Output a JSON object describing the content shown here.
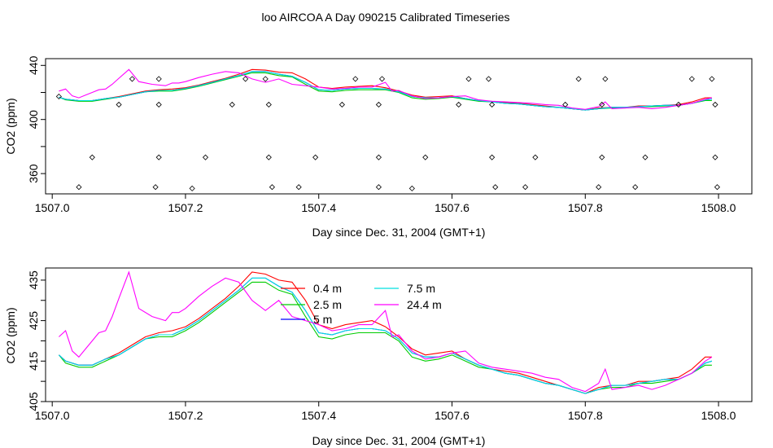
{
  "figure_title": "loo AIRCOA A  Day 090215  Calibrated Timeseries",
  "colors": {
    "0.4 m": "#ff0000",
    "2.5 m": "#00cc00",
    "5 m": "#0000ff",
    "7.5 m": "#00e0e0",
    "24.4 m": "#ff00ff"
  },
  "chart_data": [
    {
      "type": "line",
      "panel": "top",
      "xlabel": "Day since Dec. 31, 2004 (GMT+1)",
      "ylabel": "CO2 (ppm)",
      "xlim": [
        1506.99,
        1508.05
      ],
      "ylim": [
        345,
        445
      ],
      "xticks": [
        1507.0,
        1507.2,
        1507.4,
        1507.6,
        1507.8,
        1508.0
      ],
      "xtick_labels": [
        "1507.0",
        "1507.2",
        "1507.4",
        "1507.6",
        "1507.8",
        "1508.0"
      ],
      "yticks": [
        360,
        380,
        400,
        420,
        440
      ],
      "ytick_labels": [
        "360",
        "",
        "400",
        "",
        "440"
      ],
      "grid": false,
      "legend": "none",
      "series": [
        {
          "name": "0.4 m",
          "x": [
            1507.01,
            1507.02,
            1507.04,
            1507.06,
            1507.08,
            1507.1,
            1507.12,
            1507.14,
            1507.16,
            1507.18,
            1507.2,
            1507.22,
            1507.24,
            1507.26,
            1507.28,
            1507.3,
            1507.32,
            1507.34,
            1507.36,
            1507.38,
            1507.4,
            1507.42,
            1507.44,
            1507.46,
            1507.48,
            1507.5,
            1507.52,
            1507.54,
            1507.56,
            1507.58,
            1507.6,
            1507.62,
            1507.64,
            1507.66,
            1507.68,
            1507.7,
            1507.72,
            1507.74,
            1507.76,
            1507.78,
            1507.8,
            1507.82,
            1507.84,
            1507.86,
            1507.88,
            1507.9,
            1507.92,
            1507.94,
            1507.96,
            1507.98,
            1507.99
          ],
          "y": [
            416.5,
            415,
            414,
            414,
            415.5,
            417,
            419,
            421,
            422,
            422.5,
            423.5,
            425.5,
            428,
            430.5,
            433.5,
            437,
            436.5,
            435,
            434.5,
            430,
            424,
            423,
            424,
            424.5,
            425,
            423.5,
            421,
            418,
            416.5,
            417,
            417.5,
            415.5,
            414,
            413,
            412.5,
            412,
            411,
            410,
            409,
            408,
            407,
            408.5,
            409,
            409,
            410,
            410,
            410.5,
            411,
            413,
            416,
            416
          ]
        },
        {
          "name": "2.5 m",
          "x": [
            1507.01,
            1507.02,
            1507.04,
            1507.06,
            1507.08,
            1507.1,
            1507.12,
            1507.14,
            1507.16,
            1507.18,
            1507.2,
            1507.22,
            1507.24,
            1507.26,
            1507.28,
            1507.3,
            1507.32,
            1507.34,
            1507.36,
            1507.38,
            1507.4,
            1507.42,
            1507.44,
            1507.46,
            1507.48,
            1507.5,
            1507.52,
            1507.54,
            1507.56,
            1507.58,
            1507.6,
            1507.62,
            1507.64,
            1507.66,
            1507.68,
            1507.7,
            1507.72,
            1507.74,
            1507.76,
            1507.78,
            1507.8,
            1507.82,
            1507.84,
            1507.86,
            1507.88,
            1507.9,
            1507.92,
            1507.94,
            1507.96,
            1507.98,
            1507.99
          ],
          "y": [
            416.5,
            414.5,
            413.5,
            413.5,
            415,
            416.5,
            418.5,
            420.5,
            421,
            421,
            422.5,
            424.5,
            427,
            429.5,
            432,
            434.5,
            434.5,
            432.5,
            431.5,
            426,
            421,
            420.5,
            421.5,
            422,
            422,
            422,
            420,
            416,
            415,
            415.5,
            416.5,
            415,
            413.5,
            413,
            412,
            411.5,
            410.5,
            409.5,
            409,
            408,
            407,
            408,
            408.5,
            408.5,
            409.5,
            409.5,
            410,
            410.5,
            412,
            414,
            414
          ]
        },
        {
          "name": "5 m",
          "x": [
            1507.01,
            1507.02,
            1507.04,
            1507.06,
            1507.08,
            1507.1,
            1507.12,
            1507.14,
            1507.16,
            1507.18,
            1507.2,
            1507.22,
            1507.24,
            1507.26,
            1507.28,
            1507.3,
            1507.32,
            1507.34,
            1507.36,
            1507.38,
            1507.4,
            1507.42,
            1507.44,
            1507.46,
            1507.48,
            1507.5,
            1507.52,
            1507.54,
            1507.56,
            1507.58,
            1507.6,
            1507.62,
            1507.64,
            1507.66,
            1507.68,
            1507.7,
            1507.72,
            1507.74,
            1507.76,
            1507.78,
            1507.8,
            1507.82,
            1507.84,
            1507.86,
            1507.88,
            1507.9,
            1507.92,
            1507.94,
            1507.96,
            1507.98,
            1507.99
          ],
          "y": [
            416.5,
            415,
            414,
            414,
            415.5,
            416.5,
            418.5,
            420.5,
            421.5,
            421.5,
            423,
            425,
            427.5,
            430,
            432.5,
            435.5,
            435.5,
            433.5,
            432,
            427.5,
            422,
            421.5,
            422.5,
            423,
            423,
            422.5,
            420.5,
            417,
            416,
            416,
            417,
            415.5,
            414,
            413,
            412,
            411.5,
            410.5,
            409.5,
            409,
            408,
            407,
            408,
            409,
            409,
            409.5,
            410,
            410.5,
            410.5,
            412,
            414.5,
            415
          ]
        },
        {
          "name": "7.5 m",
          "x": [
            1507.01,
            1507.02,
            1507.04,
            1507.06,
            1507.08,
            1507.1,
            1507.12,
            1507.14,
            1507.16,
            1507.18,
            1507.2,
            1507.22,
            1507.24,
            1507.26,
            1507.28,
            1507.3,
            1507.32,
            1507.34,
            1507.36,
            1507.38,
            1507.4,
            1507.42,
            1507.44,
            1507.46,
            1507.48,
            1507.5,
            1507.52,
            1507.54,
            1507.56,
            1507.58,
            1507.6,
            1507.62,
            1507.64,
            1507.66,
            1507.68,
            1507.7,
            1507.72,
            1507.74,
            1507.76,
            1507.78,
            1507.8,
            1507.82,
            1507.84,
            1507.86,
            1507.88,
            1507.9,
            1507.92,
            1507.94,
            1507.96,
            1507.98,
            1507.99
          ],
          "y": [
            416.5,
            415,
            414,
            414,
            415.5,
            416.5,
            418.5,
            420.5,
            421.5,
            421.5,
            423,
            425,
            427.5,
            430,
            432.5,
            435.5,
            435.5,
            433.5,
            432,
            427.5,
            422,
            421.5,
            422.5,
            423,
            423,
            422.5,
            420.5,
            417,
            416,
            416,
            417,
            415.5,
            414,
            413,
            412,
            411.5,
            410.5,
            409.5,
            409,
            408,
            407,
            408,
            409,
            409,
            409.5,
            410,
            410.5,
            410.5,
            412,
            414.5,
            415
          ]
        },
        {
          "name": "24.4 m",
          "x": [
            1507.01,
            1507.02,
            1507.03,
            1507.04,
            1507.05,
            1507.06,
            1507.07,
            1507.08,
            1507.09,
            1507.1,
            1507.115,
            1507.13,
            1507.15,
            1507.17,
            1507.18,
            1507.19,
            1507.2,
            1507.22,
            1507.24,
            1507.26,
            1507.28,
            1507.3,
            1507.32,
            1507.34,
            1507.36,
            1507.38,
            1507.4,
            1507.42,
            1507.44,
            1507.46,
            1507.48,
            1507.5,
            1507.51,
            1507.52,
            1507.54,
            1507.56,
            1507.58,
            1507.6,
            1507.62,
            1507.64,
            1507.66,
            1507.68,
            1507.7,
            1507.72,
            1507.74,
            1507.76,
            1507.78,
            1507.8,
            1507.82,
            1507.83,
            1507.84,
            1507.86,
            1507.88,
            1507.9,
            1507.92,
            1507.94,
            1507.96,
            1507.98,
            1507.99
          ],
          "y": [
            421,
            422.5,
            417.5,
            416,
            418,
            420,
            422,
            422.5,
            426,
            430.5,
            437,
            428,
            426,
            425,
            427,
            427,
            428,
            431,
            433.5,
            435.5,
            434.5,
            430,
            427.5,
            430,
            426,
            425,
            424,
            422.5,
            423,
            424,
            424,
            427.5,
            421,
            421.5,
            417.5,
            415.5,
            416,
            417,
            417.5,
            414.5,
            413.5,
            413,
            412.5,
            412,
            411,
            410.5,
            408.5,
            407.5,
            409.5,
            413,
            408,
            408.5,
            409,
            408,
            409,
            410.5,
            412,
            415,
            416
          ]
        }
      ],
      "annotations": [
        {
          "type": "diamond_markers",
          "x": [
            1507.01,
            1507.04,
            1507.06,
            1507.1,
            1507.12,
            1507.155,
            1507.16,
            1507.16,
            1507.16,
            1507.21,
            1507.23,
            1507.27,
            1507.29,
            1507.32,
            1507.325,
            1507.325,
            1507.33,
            1507.37,
            1507.395,
            1507.435,
            1507.455,
            1507.49,
            1507.49,
            1507.49,
            1507.495,
            1507.54,
            1507.56,
            1507.61,
            1507.625,
            1507.655,
            1507.66,
            1507.66,
            1507.665,
            1507.71,
            1507.725,
            1507.77,
            1507.79,
            1507.82,
            1507.825,
            1507.825,
            1507.83,
            1507.875,
            1507.89,
            1507.94,
            1507.96,
            1507.99,
            1507.995,
            1507.995,
            1507.998
          ],
          "y": [
            417,
            350,
            372,
            411,
            430,
            350,
            372,
            411,
            430,
            349,
            372,
            411,
            430,
            430,
            411,
            372,
            350,
            350,
            372,
            411,
            430,
            411,
            372,
            350,
            430,
            349,
            372,
            411,
            430,
            430,
            411,
            372,
            350,
            350,
            372,
            411,
            430,
            350,
            372,
            411,
            430,
            350,
            372,
            411,
            430,
            430,
            411,
            372,
            350
          ]
        }
      ]
    },
    {
      "type": "line",
      "panel": "bottom",
      "xlabel": "Day since Dec. 31, 2004 (GMT+1)",
      "ylabel": "CO2 (ppm)",
      "xlim": [
        1506.99,
        1508.05
      ],
      "ylim": [
        405,
        438
      ],
      "xticks": [
        1507.0,
        1507.2,
        1507.4,
        1507.6,
        1507.8,
        1508.0
      ],
      "xtick_labels": [
        "1507.0",
        "1507.2",
        "1507.4",
        "1507.6",
        "1507.8",
        "1508.0"
      ],
      "yticks": [
        405,
        410,
        415,
        420,
        425,
        430,
        435
      ],
      "ytick_labels": [
        "405",
        "",
        "415",
        "",
        "425",
        "",
        "435"
      ],
      "grid": false,
      "legend": "top-center",
      "legend_entries": [
        "0.4 m",
        "2.5 m",
        "5 m",
        "7.5 m",
        "24.4 m"
      ],
      "series_ref": "same as top panel series"
    }
  ]
}
